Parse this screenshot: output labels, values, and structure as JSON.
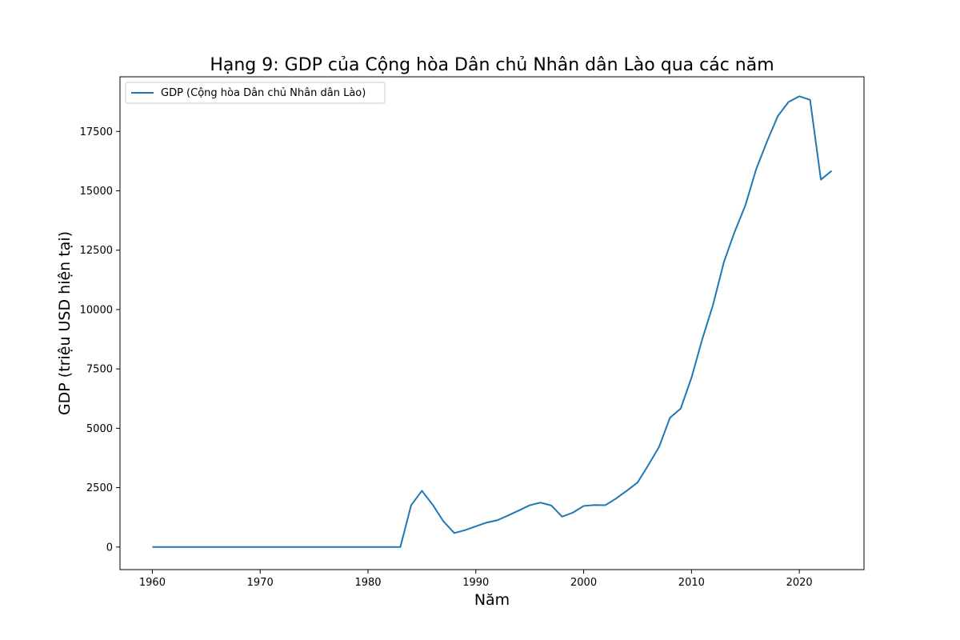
{
  "chart_data": {
    "type": "line",
    "title": "Hạng 9: GDP của Cộng hòa Dân chủ Nhân dân Lào qua các năm",
    "xlabel": "Năm",
    "ylabel": "GDP (triệu USD hiện tại)",
    "xlim": [
      1957,
      2026
    ],
    "ylim": [
      -950,
      19800
    ],
    "xticks": [
      1960,
      1970,
      1980,
      1990,
      2000,
      2010,
      2020
    ],
    "yticks": [
      0,
      2500,
      5000,
      7500,
      10000,
      12500,
      15000,
      17500
    ],
    "grid": false,
    "legend_position": "top-left",
    "series": [
      {
        "name": "GDP (Cộng hòa Dân chủ Nhân dân Lào)",
        "color": "#1f77b4",
        "x": [
          1960,
          1961,
          1962,
          1963,
          1964,
          1965,
          1966,
          1967,
          1968,
          1969,
          1970,
          1971,
          1972,
          1973,
          1974,
          1975,
          1976,
          1977,
          1978,
          1979,
          1980,
          1981,
          1982,
          1983,
          1984,
          1985,
          1986,
          1987,
          1988,
          1989,
          1990,
          1991,
          1992,
          1993,
          1994,
          1995,
          1996,
          1997,
          1998,
          1999,
          2000,
          2001,
          2002,
          2003,
          2004,
          2005,
          2006,
          2007,
          2008,
          2009,
          2010,
          2011,
          2012,
          2013,
          2014,
          2015,
          2016,
          2017,
          2018,
          2019,
          2020,
          2021,
          2022,
          2023
        ],
        "values": [
          0,
          0,
          0,
          0,
          0,
          0,
          0,
          0,
          0,
          0,
          0,
          0,
          0,
          0,
          0,
          0,
          0,
          0,
          0,
          0,
          0,
          0,
          0,
          0,
          1760,
          2370,
          1780,
          1080,
          590,
          710,
          870,
          1030,
          1130,
          1330,
          1540,
          1760,
          1870,
          1750,
          1280,
          1450,
          1730,
          1770,
          1760,
          2040,
          2370,
          2720,
          3450,
          4220,
          5440,
          5830,
          7130,
          8750,
          10200,
          11990,
          13270,
          14390,
          15910,
          17070,
          18140,
          18740,
          18980,
          18830,
          15470,
          15840
        ]
      }
    ]
  }
}
